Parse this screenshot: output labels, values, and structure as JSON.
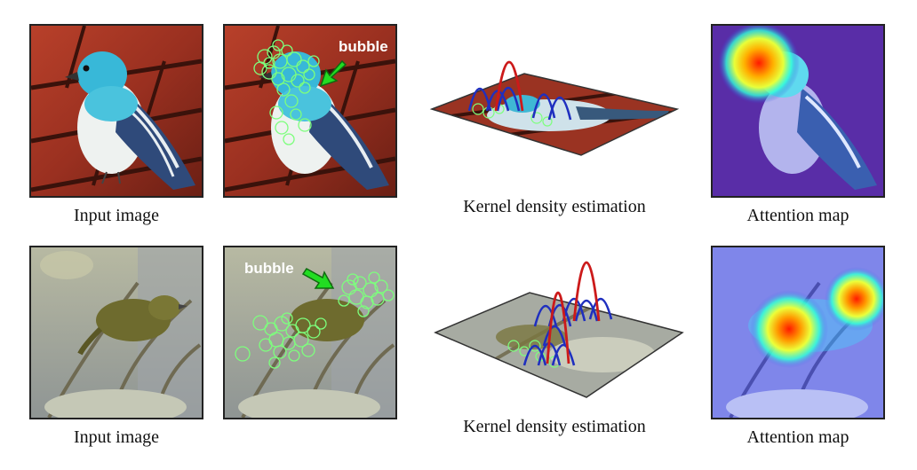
{
  "rows": [
    {
      "input_caption": "Input image",
      "bubble_label": "bubble",
      "kde_caption": "Kernel density estimation",
      "attention_caption": "Attention map"
    },
    {
      "input_caption": "Input image",
      "bubble_label": "bubble",
      "kde_caption": "Kernel density estimation",
      "attention_caption": "Attention map"
    }
  ],
  "colors": {
    "bubble_circles": "#7dff7d",
    "arrow": "#22dd22",
    "kde_blue": "#1f2fbf",
    "kde_red": "#cc1a1a",
    "attention_hot": "#ff2a00",
    "attention_cold": "#3b3bdc"
  }
}
